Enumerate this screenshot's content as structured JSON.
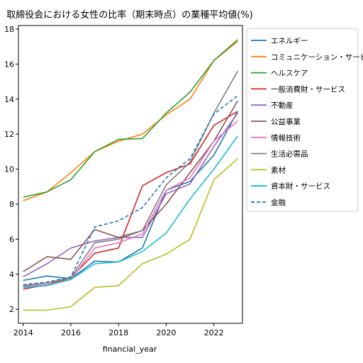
{
  "chart_data": {
    "type": "line",
    "title": "取締役会における女性の比率（期末時点）の業種平均値(%)",
    "xlabel": "financial_year",
    "ylabel": "",
    "xlim": [
      2013.8,
      2023.2
    ],
    "ylim": [
      1.2,
      18.2
    ],
    "xticks": [
      2014,
      2016,
      2018,
      2020,
      2022
    ],
    "yticks": [
      2,
      4,
      6,
      8,
      10,
      12,
      14,
      16,
      18
    ],
    "grid": false,
    "legend_position": "right-outside",
    "x": [
      2014,
      2015,
      2016,
      2017,
      2018,
      2019,
      2020,
      2021,
      2022,
      2023
    ],
    "series": [
      {
        "name": "エネルギー",
        "color": "#1f77b4",
        "dash": "solid",
        "values": [
          3.65,
          3.9,
          3.75,
          4.75,
          4.7,
          5.5,
          8.8,
          9.3,
          10.8,
          13.3
        ]
      },
      {
        "name": "コミュニケーション・サービス",
        "color": "#ff7f0e",
        "dash": "solid",
        "values": [
          8.2,
          8.7,
          9.8,
          11.0,
          11.6,
          12.0,
          13.1,
          14.0,
          16.2,
          17.3
        ]
      },
      {
        "name": "ヘルスケア",
        "color": "#2ca02c",
        "dash": "solid",
        "values": [
          8.4,
          8.7,
          9.4,
          11.0,
          11.7,
          11.75,
          13.2,
          14.4,
          16.2,
          17.4
        ]
      },
      {
        "name": "一般消費財・サービス",
        "color": "#d62728",
        "dash": "solid",
        "values": [
          3.15,
          3.4,
          3.8,
          5.2,
          5.5,
          9.05,
          9.8,
          10.3,
          12.5,
          13.3
        ]
      },
      {
        "name": "不動産",
        "color": "#9467bd",
        "dash": "solid",
        "values": [
          3.85,
          4.6,
          5.5,
          5.9,
          6.1,
          6.1,
          8.6,
          9.15,
          11.3,
          13.2
        ]
      },
      {
        "name": "公益事業",
        "color": "#8c564b",
        "dash": "solid",
        "values": [
          4.15,
          5.0,
          4.85,
          6.55,
          6.1,
          6.5,
          8.0,
          9.8,
          11.6,
          13.9
        ]
      },
      {
        "name": "情報技術",
        "color": "#e377c2",
        "dash": "solid",
        "values": [
          3.3,
          3.4,
          3.7,
          5.5,
          5.8,
          6.3,
          8.8,
          9.5,
          11.6,
          12.75
        ]
      },
      {
        "name": "生活必需品",
        "color": "#7f7f7f",
        "dash": "solid",
        "values": [
          3.35,
          3.5,
          3.8,
          5.8,
          6.0,
          6.5,
          9.1,
          10.4,
          13.2,
          15.6
        ]
      },
      {
        "name": "素材",
        "color": "#bcbd22",
        "dash": "solid",
        "values": [
          1.95,
          1.95,
          2.15,
          3.25,
          3.35,
          4.6,
          5.15,
          6.0,
          9.4,
          10.6
        ]
      },
      {
        "name": "資本財・サービス",
        "color": "#17becf",
        "dash": "solid",
        "values": [
          3.25,
          3.35,
          3.7,
          4.6,
          4.7,
          5.3,
          6.35,
          8.3,
          10.0,
          11.9
        ]
      },
      {
        "name": "金融",
        "color": "#1f77b4",
        "dash": "dashed",
        "values": [
          3.4,
          3.55,
          3.85,
          6.7,
          7.05,
          7.8,
          9.5,
          10.6,
          13.15,
          14.2
        ]
      }
    ]
  }
}
